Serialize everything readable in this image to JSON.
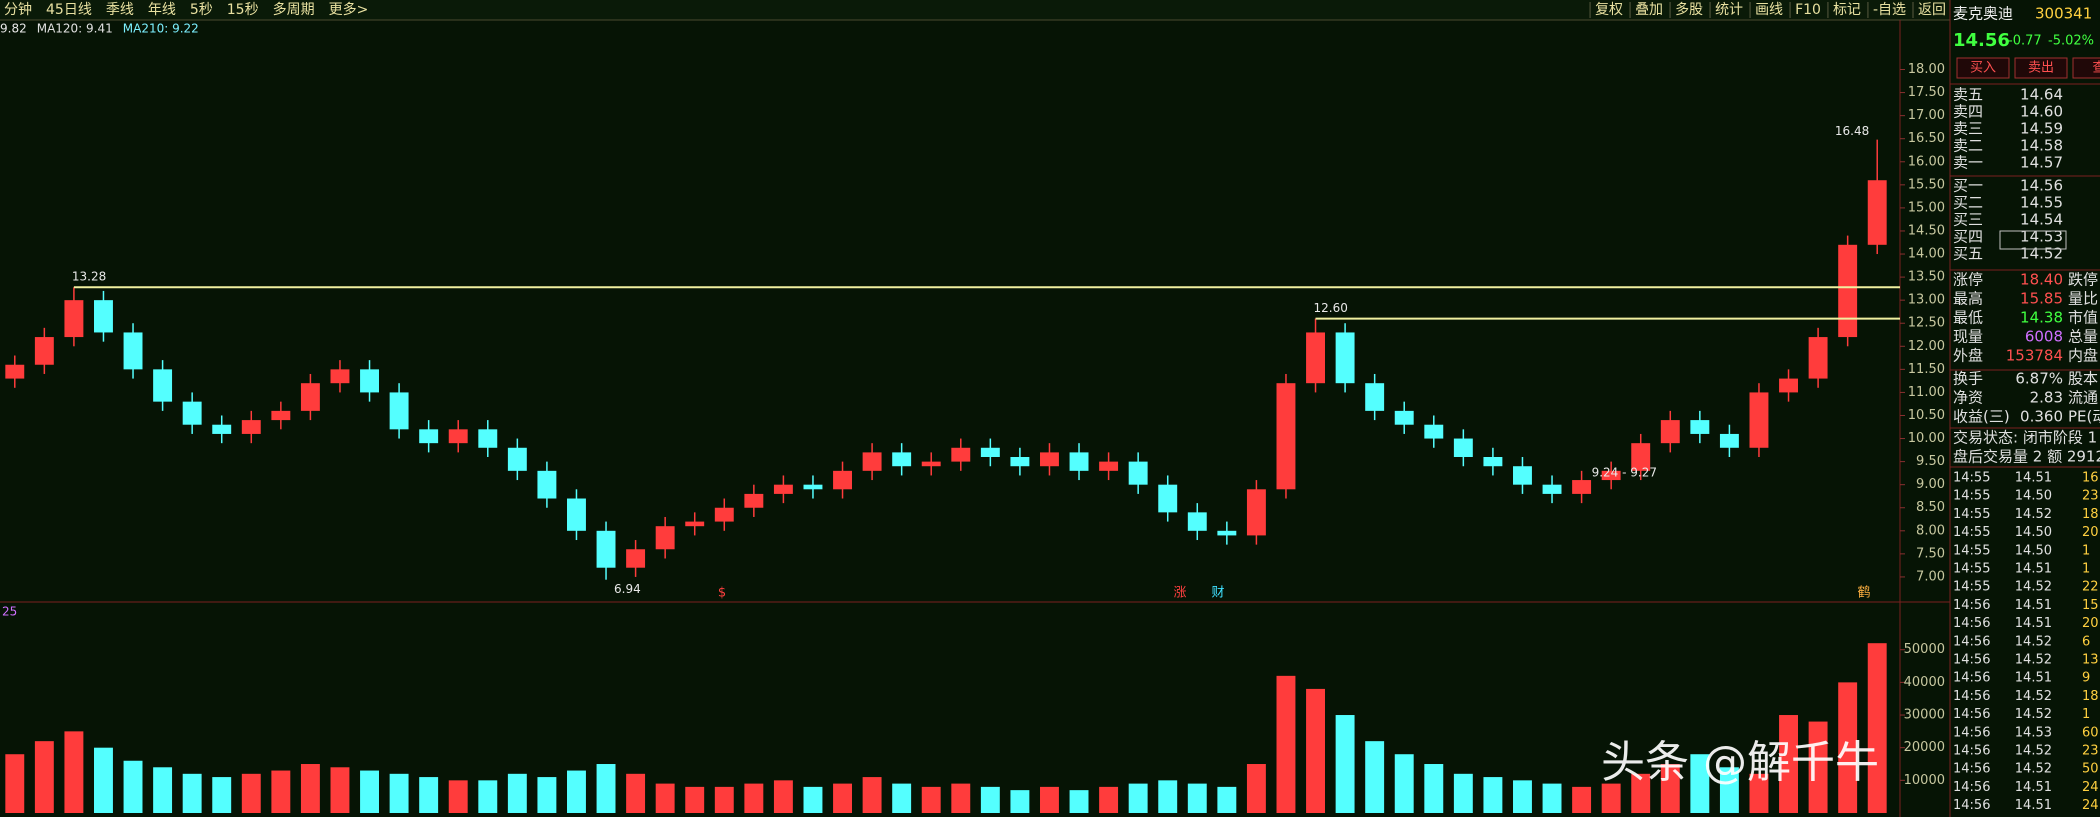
{
  "toolbar": {
    "left": [
      "分钟",
      "45日线",
      "季线",
      "年线",
      "5秒",
      "15秒",
      "多周期",
      "更多>"
    ],
    "right": [
      "复权",
      "叠加",
      "多股",
      "统计",
      "画线",
      "F10",
      "标记",
      "-自选",
      "返回"
    ]
  },
  "ma_legend": [
    "9.82",
    "MA120: 9.41",
    "MA210: 9.22"
  ],
  "chart_data": {
    "type": "candlestick",
    "open": [
      11.3,
      11.6,
      12.2,
      13.0,
      12.3,
      11.5,
      10.8,
      10.3,
      10.1,
      10.4,
      10.6,
      11.2,
      11.5,
      11.0,
      10.2,
      9.9,
      10.2,
      9.8,
      9.3,
      8.7,
      8.0,
      7.2,
      7.6,
      8.1,
      8.2,
      8.5,
      8.8,
      9.0,
      8.9,
      9.3,
      9.7,
      9.4,
      9.5,
      9.8,
      9.6,
      9.4,
      9.7,
      9.3,
      9.5,
      9.0,
      8.4,
      8.0,
      7.9,
      8.9,
      11.2,
      12.3,
      11.2,
      10.6,
      10.3,
      10.0,
      9.6,
      9.4,
      9.0,
      8.8,
      9.1,
      9.3,
      9.9,
      10.4,
      10.1,
      9.8,
      11.0,
      11.3,
      12.2,
      14.2
    ],
    "high": [
      11.8,
      12.4,
      13.28,
      13.2,
      12.5,
      11.7,
      11.0,
      10.5,
      10.6,
      10.8,
      11.4,
      11.7,
      11.7,
      11.2,
      10.4,
      10.4,
      10.4,
      10.0,
      9.5,
      8.9,
      8.2,
      7.8,
      8.3,
      8.4,
      8.7,
      9.0,
      9.2,
      9.2,
      9.5,
      9.9,
      9.9,
      9.7,
      10.0,
      10.0,
      9.8,
      9.9,
      9.9,
      9.7,
      9.7,
      9.2,
      8.6,
      8.2,
      9.1,
      11.4,
      12.6,
      12.5,
      11.4,
      10.8,
      10.5,
      10.2,
      9.8,
      9.6,
      9.2,
      9.3,
      9.5,
      10.1,
      10.6,
      10.6,
      10.3,
      11.2,
      11.5,
      12.4,
      14.4,
      16.48
    ],
    "low": [
      11.1,
      11.4,
      12.0,
      12.1,
      11.3,
      10.6,
      10.1,
      9.9,
      9.9,
      10.2,
      10.4,
      11.0,
      10.8,
      10.0,
      9.7,
      9.7,
      9.6,
      9.1,
      8.5,
      7.8,
      6.94,
      7.0,
      7.4,
      7.9,
      8.0,
      8.3,
      8.6,
      8.7,
      8.7,
      9.1,
      9.2,
      9.2,
      9.3,
      9.4,
      9.2,
      9.2,
      9.1,
      9.1,
      8.8,
      8.2,
      7.8,
      7.7,
      7.7,
      8.7,
      11.0,
      11.0,
      10.4,
      10.1,
      9.8,
      9.4,
      9.2,
      8.8,
      8.6,
      8.6,
      8.9,
      9.1,
      9.7,
      9.9,
      9.6,
      9.6,
      10.8,
      11.1,
      12.0,
      14.0
    ],
    "close": [
      11.6,
      12.2,
      13.0,
      12.3,
      11.5,
      10.8,
      10.3,
      10.1,
      10.4,
      10.6,
      11.2,
      11.5,
      11.0,
      10.2,
      9.9,
      10.2,
      9.8,
      9.3,
      8.7,
      8.0,
      7.2,
      7.6,
      8.1,
      8.2,
      8.5,
      8.8,
      9.0,
      8.9,
      9.3,
      9.7,
      9.4,
      9.5,
      9.8,
      9.6,
      9.4,
      9.7,
      9.3,
      9.5,
      9.0,
      8.4,
      8.0,
      7.9,
      8.9,
      11.2,
      12.3,
      11.2,
      10.6,
      10.3,
      10.0,
      9.6,
      9.4,
      9.0,
      8.8,
      9.1,
      9.3,
      9.9,
      10.4,
      10.1,
      9.8,
      11.0,
      11.3,
      12.2,
      14.2,
      15.6
    ],
    "up_color": "#ff3c3c",
    "down_color": "#54ffff",
    "ylim": [
      6.5,
      18.9
    ],
    "yticks": [
      {
        "value": 7,
        "label": "7.00"
      },
      {
        "value": 7.5,
        "label": "7.50"
      },
      {
        "value": 8,
        "label": "8.00"
      },
      {
        "value": 8.5,
        "label": "8.50"
      },
      {
        "value": 9,
        "label": "9.00"
      },
      {
        "value": 9.5,
        "label": "9.50"
      },
      {
        "value": 10,
        "label": "10.00"
      },
      {
        "value": 10.5,
        "label": "10.50"
      },
      {
        "value": 11,
        "label": "11.00"
      },
      {
        "value": 11.5,
        "label": "11.50"
      },
      {
        "value": 12,
        "label": "12.00"
      },
      {
        "value": 12.5,
        "label": "12.50"
      },
      {
        "value": 13,
        "label": "13.00"
      },
      {
        "value": 13.5,
        "label": "13.50"
      },
      {
        "value": 14,
        "label": "14.00"
      },
      {
        "value": 14.5,
        "label": "14.50"
      },
      {
        "value": 15,
        "label": "15.00"
      },
      {
        "value": 15.5,
        "label": "15.50"
      },
      {
        "value": 16,
        "label": "16.00"
      },
      {
        "value": 16.5,
        "label": "16.50"
      },
      {
        "value": 17,
        "label": "17.00"
      },
      {
        "value": 17.5,
        "label": "17.50"
      },
      {
        "value": 18,
        "label": "18.00"
      }
    ],
    "levels": [
      {
        "value": 13.28,
        "label": "13.28"
      },
      {
        "value": 12.6,
        "label": "12.60"
      }
    ],
    "extremes": [
      {
        "value": 6.94,
        "label": "6.94"
      },
      {
        "value": 16.48,
        "label": "16.48"
      }
    ],
    "range_label": "9.24 - 9.27",
    "events": [
      "$",
      "涨",
      "财",
      "鹤"
    ]
  },
  "volume_data": {
    "type": "bar",
    "label": "25",
    "values": [
      18000,
      22000,
      25000,
      20000,
      16000,
      14000,
      12000,
      11000,
      12000,
      13000,
      15000,
      14000,
      13000,
      12000,
      11000,
      10000,
      10000,
      12000,
      11000,
      13000,
      15000,
      12000,
      9000,
      8000,
      8000,
      9000,
      10000,
      8000,
      9000,
      11000,
      9000,
      8000,
      9000,
      8000,
      7000,
      8000,
      7000,
      8000,
      9000,
      10000,
      9000,
      8000,
      15000,
      42000,
      38000,
      30000,
      22000,
      18000,
      15000,
      12000,
      11000,
      10000,
      9000,
      8000,
      9000,
      12000,
      15000,
      18000,
      14000,
      12000,
      30000,
      28000,
      40000,
      52000
    ],
    "ylim": [
      0,
      64000
    ],
    "yticks": [
      10000,
      20000,
      30000,
      40000,
      50000
    ]
  },
  "quote": {
    "name": "麦克奥迪",
    "code": "300341",
    "price": "14.56",
    "change": "-0.77",
    "pct": "-5.02%",
    "buttons": [
      "买入",
      "卖出",
      "查"
    ]
  },
  "order_book": {
    "asks": [
      [
        "卖五",
        "14.64"
      ],
      [
        "卖四",
        "14.60"
      ],
      [
        "卖三",
        "14.59"
      ],
      [
        "卖二",
        "14.58"
      ],
      [
        "卖一",
        "14.57"
      ]
    ],
    "bids": [
      [
        "买一",
        "14.56"
      ],
      [
        "买二",
        "14.55"
      ],
      [
        "买三",
        "14.54"
      ],
      [
        "买四",
        "14.53"
      ],
      [
        "买五",
        "14.52"
      ]
    ]
  },
  "stats": [
    [
      "涨停",
      "18.40",
      "跌停"
    ],
    [
      "最高",
      "15.85",
      "量比"
    ],
    [
      "最低",
      "14.38",
      "市值"
    ],
    [
      "现量",
      "6008",
      "总量"
    ],
    [
      "外盘",
      "153784",
      "内盘"
    ],
    [
      "换手",
      "6.87%",
      "股本"
    ],
    [
      "净资",
      "2.83",
      "流通"
    ],
    [
      "收益(三)",
      "0.360",
      "PE(动"
    ]
  ],
  "status": [
    "交易状态: 闭市阶段 1",
    "盘后交易量 2 额 2912"
  ],
  "trades": [
    [
      "14:55",
      "14.51",
      "16"
    ],
    [
      "14:55",
      "14.50",
      "23"
    ],
    [
      "14:55",
      "14.52",
      "18"
    ],
    [
      "14:55",
      "14.50",
      "20"
    ],
    [
      "14:55",
      "14.50",
      "1"
    ],
    [
      "14:55",
      "14.51",
      "1"
    ],
    [
      "14:55",
      "14.52",
      "22"
    ],
    [
      "14:56",
      "14.51",
      "15"
    ],
    [
      "14:56",
      "14.51",
      "20"
    ],
    [
      "14:56",
      "14.52",
      "6"
    ],
    [
      "14:56",
      "14.52",
      "13"
    ],
    [
      "14:56",
      "14.51",
      "9"
    ],
    [
      "14:56",
      "14.52",
      "18"
    ],
    [
      "14:56",
      "14.52",
      "1"
    ],
    [
      "14:56",
      "14.53",
      "60"
    ],
    [
      "14:56",
      "14.52",
      "23"
    ],
    [
      "14:56",
      "14.52",
      "50"
    ],
    [
      "14:56",
      "14.51",
      "24"
    ],
    [
      "14:56",
      "14.51",
      "24"
    ]
  ],
  "watermark": "头条 @解千牛"
}
